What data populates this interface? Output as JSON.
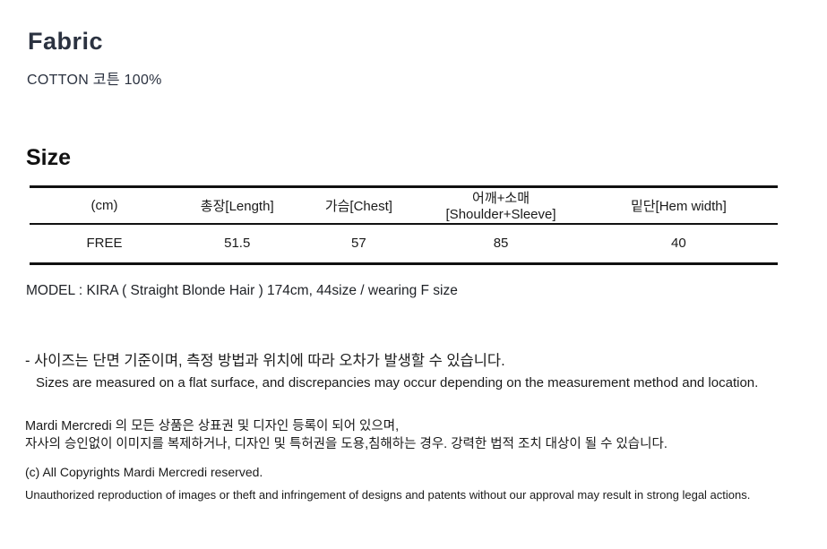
{
  "page": {
    "background_color": "#ffffff",
    "text_color": "#1a1a1a",
    "heading_accent_color": "#2b3240"
  },
  "fabric_section": {
    "title": "Fabric",
    "composition": "COTTON 코튼 100%"
  },
  "size_section": {
    "title": "Size",
    "table": {
      "headers": [
        "(cm)",
        "총장[Length]",
        "가슴[Chest]",
        "어깨+소매[Shoulder+Sleeve]",
        "밑단[Hem width]"
      ],
      "rows": [
        [
          "FREE",
          "51.5",
          "57",
          "85",
          "40"
        ]
      ]
    },
    "model_info": "MODEL : KIRA ( Straight Blonde Hair ) 174cm, 44size / wearing F size"
  },
  "measurement_note": {
    "korean": "- 사이즈는 단면 기준이며, 측정 방법과 위치에 따라 오차가 발생할 수 있습니다.",
    "english": "Sizes are measured on a flat surface, and discrepancies may occur depending on the measurement method and location."
  },
  "brand_notice": {
    "line1": "Mardi Mercredi 의 모든 상품은 상표권 및 디자인 등록이 되어 있으며,",
    "line2": "자사의 승인없이 이미지를 복제하거나, 디자인 및 특허권을 도용,침해하는 경우. 강력한 법적 조치 대상이 될 수 있습니다."
  },
  "copyright": {
    "line1": "(c) All Copyrights Mardi Mercredi reserved.",
    "line2": "Unauthorized reproduction of images or theft and infringement of designs and patents without our approval may result in strong legal actions."
  }
}
